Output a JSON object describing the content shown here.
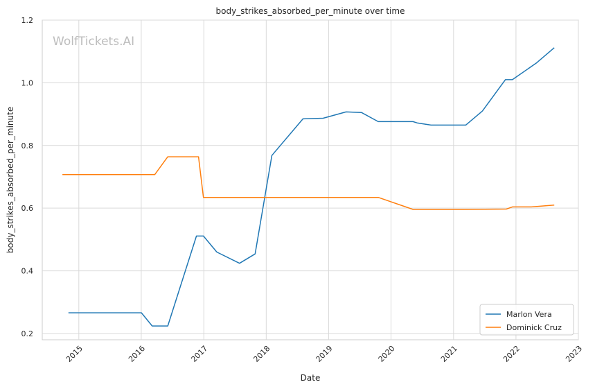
{
  "chart_data": {
    "type": "line",
    "title": "body_strikes_absorbed_per_minute over time",
    "xlabel": "Date",
    "ylabel": "body_strikes_absorbed_per_minute",
    "watermark": "WolfTickets.AI",
    "xlim": [
      "2014-06-01",
      "2023-01-01"
    ],
    "ylim": [
      0.18,
      1.2
    ],
    "x_ticks": [
      "2015",
      "2016",
      "2017",
      "2018",
      "2019",
      "2020",
      "2021",
      "2022",
      "2023"
    ],
    "y_ticks": [
      "0.2",
      "0.4",
      "0.6",
      "0.8",
      "1.0",
      "1.2"
    ],
    "grid": true,
    "legend_position": "bottom-right",
    "series": [
      {
        "name": "Marlon Vera",
        "color": "#1f77b4",
        "points": [
          [
            "2014-11-01",
            0.266
          ],
          [
            "2016-01-02",
            0.266
          ],
          [
            "2016-03-05",
            0.224
          ],
          [
            "2016-06-04",
            0.224
          ],
          [
            "2016-11-19",
            0.511
          ],
          [
            "2016-12-30",
            0.511
          ],
          [
            "2017-03-18",
            0.46
          ],
          [
            "2017-07-29",
            0.424
          ],
          [
            "2017-10-28",
            0.454
          ],
          [
            "2018-02-03",
            0.768
          ],
          [
            "2018-08-04",
            0.885
          ],
          [
            "2018-11-30",
            0.887
          ],
          [
            "2019-04-13",
            0.907
          ],
          [
            "2019-07-13",
            0.905
          ],
          [
            "2019-10-18",
            0.876
          ],
          [
            "2020-05-09",
            0.876
          ],
          [
            "2020-06-01",
            0.872
          ],
          [
            "2020-08-22",
            0.865
          ],
          [
            "2021-03-13",
            0.865
          ],
          [
            "2021-06-19",
            0.91
          ],
          [
            "2021-10-31",
            1.01
          ],
          [
            "2021-12-11",
            1.01
          ],
          [
            "2022-04-30",
            1.063
          ],
          [
            "2022-08-13",
            1.112
          ]
        ]
      },
      {
        "name": "Dominick Cruz",
        "color": "#ff7f0e",
        "points": [
          [
            "2014-09-27",
            0.707
          ],
          [
            "2016-01-17",
            0.707
          ],
          [
            "2016-03-20",
            0.707
          ],
          [
            "2016-06-04",
            0.764
          ],
          [
            "2016-12-01",
            0.764
          ],
          [
            "2016-12-30",
            0.634
          ],
          [
            "2019-10-20",
            0.634
          ],
          [
            "2020-05-09",
            0.596
          ],
          [
            "2021-03-01",
            0.596
          ],
          [
            "2021-11-06",
            0.597
          ],
          [
            "2021-12-11",
            0.604
          ],
          [
            "2022-04-01",
            0.604
          ],
          [
            "2022-08-13",
            0.61
          ]
        ]
      }
    ]
  }
}
